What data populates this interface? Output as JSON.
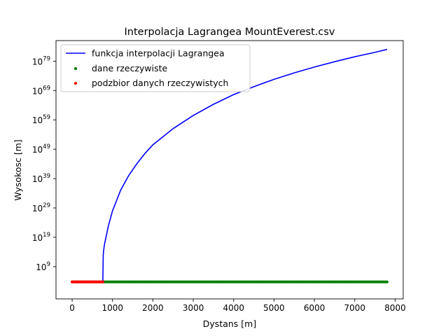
{
  "chart_data": {
    "type": "line",
    "title": "Interpolacja Lagrangea MountEverest.csv",
    "xlabel": "Dystans [m]",
    "ylabel": "Wysokosc [m]",
    "yscale": "log",
    "xlim": [
      -400,
      8200
    ],
    "ylim_log10": [
      -2.0,
      86.0
    ],
    "x_ticks": [
      0,
      1000,
      2000,
      3000,
      4000,
      5000,
      6000,
      7000,
      8000
    ],
    "x_tick_labels": [
      "0",
      "1000",
      "2000",
      "3000",
      "4000",
      "5000",
      "6000",
      "7000",
      "8000"
    ],
    "y_ticks_log10": [
      9,
      19,
      29,
      39,
      49,
      59,
      69,
      79
    ],
    "y_tick_labels": [
      {
        "base": "10",
        "exp": "9"
      },
      {
        "base": "10",
        "exp": "19"
      },
      {
        "base": "10",
        "exp": "29"
      },
      {
        "base": "10",
        "exp": "39"
      },
      {
        "base": "10",
        "exp": "49"
      },
      {
        "base": "10",
        "exp": "59"
      },
      {
        "base": "10",
        "exp": "69"
      },
      {
        "base": "10",
        "exp": "79"
      }
    ],
    "grid": false,
    "legend_position": "top-left",
    "series": [
      {
        "name": "funkcja interpolacji Lagrangea",
        "kind": "line",
        "color": "#0000ff",
        "x": [
          0,
          100,
          200,
          300,
          400,
          500,
          600,
          700,
          760,
          770,
          780,
          800,
          850,
          900,
          1000,
          1200,
          1400,
          1600,
          1800,
          2000,
          2500,
          3000,
          3500,
          4000,
          4500,
          5000,
          5500,
          6000,
          6500,
          7000,
          7500,
          7800
        ],
        "y_log10": [
          3.8,
          3.8,
          3.8,
          3.8,
          3.8,
          3.8,
          3.8,
          3.8,
          3.8,
          13.0,
          14.5,
          16.5,
          19.8,
          23.0,
          28.0,
          35.0,
          40.0,
          44.0,
          47.5,
          50.5,
          56.0,
          60.5,
          64.3,
          67.6,
          70.3,
          72.8,
          75.0,
          77.0,
          78.8,
          80.5,
          82.0,
          83.0
        ]
      },
      {
        "name": "dane rzeczywiste",
        "kind": "scatter",
        "color": "#008000",
        "x_start": 0,
        "x_end": 7800,
        "x_step": 40,
        "y_log10": 3.8
      },
      {
        "name": "podzbior danych rzeczywistych",
        "kind": "scatter",
        "color": "#ff0000",
        "x_start": 0,
        "x_end": 760,
        "x_step": 40,
        "y_log10": 3.8
      }
    ]
  }
}
